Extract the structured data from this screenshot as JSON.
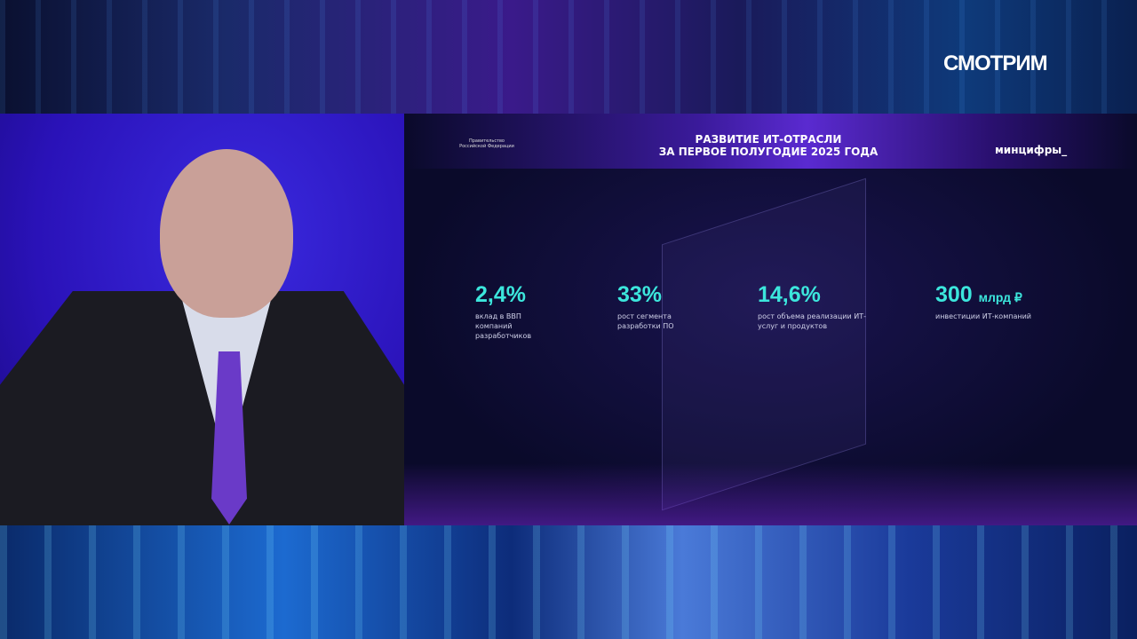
{
  "channel_logo": "СМОТРИМ",
  "slide": {
    "gov_logo_text": "Правительство Российской Федерации",
    "title_line1": "РАЗВИТИЕ ИТ-ОТРАСЛИ",
    "title_line2": "ЗА ПЕРВОЕ ПОЛУГОДИЕ 2025 ГОДА",
    "ministry": "минцифры_",
    "stats": [
      {
        "value": "2,4%",
        "unit": "",
        "caption": "вклад в ВВП компаний разработчиков"
      },
      {
        "value": "33%",
        "unit": "",
        "caption": "рост сегмента разработки ПО"
      },
      {
        "value": "14,6%",
        "unit": "",
        "caption": "рост объема реализации ИТ-услуг и продуктов"
      },
      {
        "value": "300",
        "unit": "млрд ₽",
        "caption": "инвестиции ИТ-компаний"
      }
    ],
    "accent": "#3ce6dc"
  }
}
